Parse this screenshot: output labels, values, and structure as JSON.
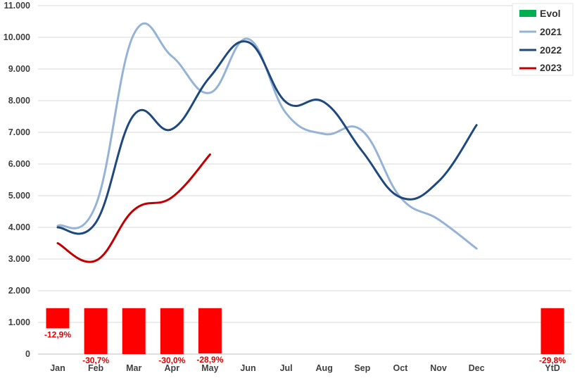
{
  "chart_data": {
    "type": "line",
    "categories": [
      "Jan",
      "Feb",
      "Mar",
      "Apr",
      "May",
      "Jun",
      "Jul",
      "Aug",
      "Sep",
      "Oct",
      "Nov",
      "Dec",
      "YtD"
    ],
    "ylim": [
      0,
      11000
    ],
    "yticks": [
      {
        "value": 0,
        "label": "0"
      },
      {
        "value": 1000,
        "label": "1.000"
      },
      {
        "value": 2000,
        "label": "2.000"
      },
      {
        "value": 3000,
        "label": "3.000"
      },
      {
        "value": 4000,
        "label": "4.000"
      },
      {
        "value": 5000,
        "label": "5.000"
      },
      {
        "value": 6000,
        "label": "6.000"
      },
      {
        "value": 7000,
        "label": "7.000"
      },
      {
        "value": 8000,
        "label": "8.000"
      },
      {
        "value": 9000,
        "label": "9.000"
      },
      {
        "value": 10000,
        "label": "10.000"
      },
      {
        "value": 11000,
        "label": "11.000"
      }
    ],
    "grid": true,
    "legend_position": "top-right",
    "series": [
      {
        "name": "2021",
        "type": "line",
        "color": "#95b3d7",
        "values": [
          4050,
          4700,
          10100,
          9400,
          8250,
          9950,
          7600,
          6950,
          7050,
          4950,
          4250,
          3330,
          null
        ]
      },
      {
        "name": "2022",
        "type": "line",
        "color": "#1f497d",
        "values": [
          4000,
          4150,
          7550,
          7100,
          8750,
          9850,
          7950,
          7950,
          6400,
          4950,
          5450,
          7230,
          null
        ]
      },
      {
        "name": "2023",
        "type": "line",
        "color": "#c00000",
        "values": [
          3500,
          2950,
          4550,
          4950,
          6300,
          null,
          null,
          null,
          null,
          null,
          null,
          null,
          null
        ]
      }
    ],
    "evol": {
      "name": "Evol",
      "legend_color": "#00b050",
      "bar_color": "#ff0000",
      "baseline": 1450,
      "scale": 4.95,
      "values": [
        -12.9,
        -30.7,
        -30.5,
        -30.0,
        -28.9,
        null,
        null,
        null,
        null,
        null,
        null,
        null,
        -29.8
      ],
      "labels": [
        "-12,9%",
        "-30,7%",
        "",
        "-30,0%",
        "-28,9%",
        "",
        "",
        "",
        "",
        "",
        "",
        "",
        "-29,8%"
      ]
    }
  }
}
